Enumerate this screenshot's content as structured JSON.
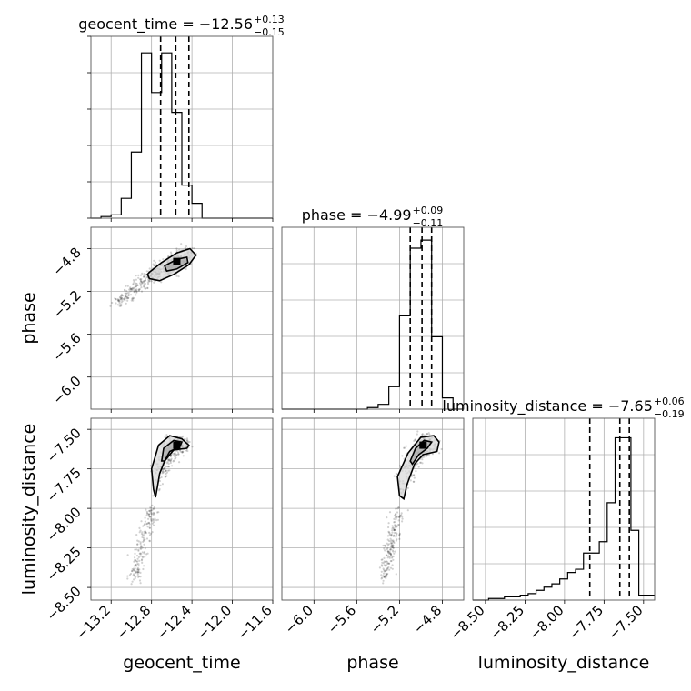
{
  "chart_data": {
    "type": "corner",
    "parameters": [
      "geocent_time",
      "phase",
      "luminosity_distance"
    ],
    "grid": true,
    "axes": {
      "geocent_time": {
        "range": [
          -13.4,
          -11.6
        ],
        "ticks": [
          -13.2,
          -12.8,
          -12.4,
          -12.0,
          -11.6
        ],
        "tick_labels": [
          "−13.2",
          "−12.8",
          "−12.4",
          "−12.0",
          "−11.6"
        ],
        "label": "geocent_time"
      },
      "phase": {
        "range": [
          -6.3,
          -4.6
        ],
        "ticks": [
          -6.0,
          -5.6,
          -5.2,
          -4.8
        ],
        "tick_labels": [
          "−6.0",
          "−5.6",
          "−5.2",
          "−4.8"
        ],
        "label": "phase"
      },
      "luminosity_distance": {
        "range": [
          -8.58,
          -7.43
        ],
        "ticks": [
          -8.5,
          -8.25,
          -8.0,
          -7.75,
          -7.5
        ],
        "tick_labels": [
          "−8.50",
          "−8.25",
          "−8.00",
          "−7.75",
          "−7.50"
        ],
        "label": "luminosity_distance"
      }
    },
    "titles": [
      {
        "param": "geocent_time",
        "prefix": "geocent_time = −12.56",
        "plus": "+0.13",
        "minus": "−0.15"
      },
      {
        "param": "phase",
        "prefix": "phase = −4.99",
        "plus": "+0.09",
        "minus": "−0.11"
      },
      {
        "param": "luminosity_distance",
        "prefix": "luminosity_distance = −7.65",
        "plus": "+0.06",
        "minus": "−0.19"
      }
    ],
    "histograms": {
      "geocent_time": {
        "bin_edges": [
          -13.4,
          -13.3,
          -13.2,
          -13.1,
          -13.0,
          -12.9,
          -12.8,
          -12.7,
          -12.6,
          -12.5,
          -12.4,
          -12.3,
          -12.2,
          -12.1,
          -12.0,
          -11.9,
          -11.8,
          -11.7,
          -11.6
        ],
        "counts": [
          0,
          1,
          2,
          12,
          40,
          100,
          76,
          100,
          64,
          20,
          9,
          0,
          0,
          0,
          0,
          0,
          0,
          0
        ],
        "max": 110,
        "quantiles": [
          -12.71,
          -12.56,
          -12.43
        ]
      },
      "phase": {
        "bin_edges": [
          -6.3,
          -6.2,
          -6.1,
          -6.0,
          -5.9,
          -5.8,
          -5.7,
          -5.6,
          -5.5,
          -5.4,
          -5.3,
          -5.2,
          -5.1,
          -5.0,
          -4.9,
          -4.8,
          -4.7,
          -4.6
        ],
        "counts": [
          0,
          0,
          0,
          0,
          0,
          0,
          0,
          0,
          1,
          3,
          14,
          58,
          100,
          105,
          45,
          7,
          0
        ],
        "max": 113,
        "quantiles": [
          -5.1,
          -4.99,
          -4.9
        ]
      },
      "luminosity_distance": {
        "bin_edges": [
          -8.58,
          -8.53,
          -8.48,
          -8.43,
          -8.38,
          -8.33,
          -8.28,
          -8.23,
          -8.18,
          -8.13,
          -8.08,
          -8.03,
          -7.98,
          -7.93,
          -7.88,
          -7.83,
          -7.78,
          -7.73,
          -7.68,
          -7.63,
          -7.58,
          -7.53,
          -7.48,
          -7.43
        ],
        "counts": [
          0,
          0,
          1,
          1,
          2,
          2,
          3,
          4,
          6,
          8,
          10,
          13,
          17,
          19,
          29,
          29,
          36,
          60,
          100,
          100,
          43,
          3,
          3
        ],
        "max": 112,
        "quantiles": [
          -7.84,
          -7.65,
          -7.59
        ]
      }
    },
    "scatter": {
      "phase_vs_geocent_time": {
        "x_param": "geocent_time",
        "y_param": "phase"
      },
      "luminosity_distance_vs_geocent_time": {
        "x_param": "geocent_time",
        "y_param": "luminosity_distance"
      },
      "luminosity_distance_vs_phase": {
        "x_param": "phase",
        "y_param": "luminosity_distance"
      }
    },
    "contours": {
      "phase_vs_geocent_time": [
        [
          [
            -12.82,
            -5.02
          ],
          [
            -12.7,
            -4.93
          ],
          [
            -12.55,
            -4.84
          ],
          [
            -12.42,
            -4.8
          ],
          [
            -12.36,
            -4.86
          ],
          [
            -12.43,
            -4.95
          ],
          [
            -12.58,
            -5.04
          ],
          [
            -12.72,
            -5.1
          ],
          [
            -12.82,
            -5.08
          ],
          [
            -12.84,
            -5.04
          ]
        ],
        [
          [
            -12.67,
            -4.96
          ],
          [
            -12.55,
            -4.9
          ],
          [
            -12.45,
            -4.88
          ],
          [
            -12.44,
            -4.93
          ],
          [
            -12.55,
            -4.99
          ],
          [
            -12.65,
            -5.01
          ]
        ]
      ],
      "luminosity_distance_vs_geocent_time": [
        [
          [
            -12.78,
            -7.88
          ],
          [
            -12.8,
            -7.75
          ],
          [
            -12.73,
            -7.6
          ],
          [
            -12.62,
            -7.54
          ],
          [
            -12.5,
            -7.56
          ],
          [
            -12.43,
            -7.6
          ],
          [
            -12.45,
            -7.62
          ],
          [
            -12.58,
            -7.63
          ],
          [
            -12.67,
            -7.7
          ],
          [
            -12.72,
            -7.78
          ],
          [
            -12.74,
            -7.86
          ],
          [
            -12.76,
            -7.93
          ]
        ],
        [
          [
            -12.7,
            -7.7
          ],
          [
            -12.68,
            -7.62
          ],
          [
            -12.58,
            -7.57
          ],
          [
            -12.5,
            -7.58
          ],
          [
            -12.52,
            -7.61
          ],
          [
            -12.62,
            -7.64
          ],
          [
            -12.67,
            -7.7
          ]
        ]
      ],
      "luminosity_distance_vs_phase": [
        [
          [
            -5.2,
            -7.92
          ],
          [
            -5.22,
            -7.8
          ],
          [
            -5.12,
            -7.65
          ],
          [
            -5.0,
            -7.55
          ],
          [
            -4.88,
            -7.54
          ],
          [
            -4.83,
            -7.58
          ],
          [
            -4.85,
            -7.64
          ],
          [
            -4.98,
            -7.66
          ],
          [
            -5.06,
            -7.72
          ],
          [
            -5.13,
            -7.85
          ],
          [
            -5.16,
            -7.94
          ]
        ],
        [
          [
            -5.1,
            -7.7
          ],
          [
            -5.05,
            -7.62
          ],
          [
            -4.97,
            -7.57
          ],
          [
            -4.9,
            -7.58
          ],
          [
            -4.94,
            -7.62
          ],
          [
            -5.02,
            -7.66
          ],
          [
            -5.08,
            -7.72
          ]
        ]
      ]
    },
    "peaks": {
      "phase_vs_geocent_time": [
        -12.55,
        -4.92
      ],
      "luminosity_distance_vs_geocent_time": [
        -12.55,
        -7.6
      ],
      "luminosity_distance_vs_phase": [
        -4.98,
        -7.6
      ]
    }
  }
}
